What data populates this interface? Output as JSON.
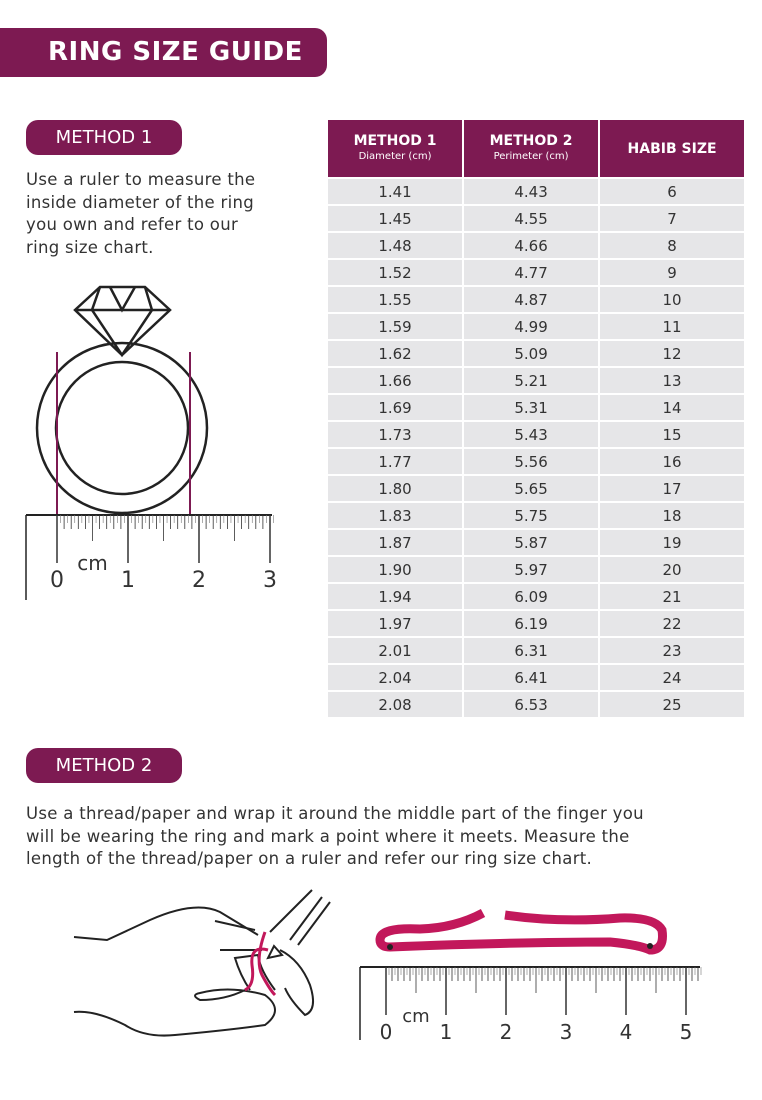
{
  "title": "RING SIZE GUIDE",
  "method1": {
    "label": "METHOD 1",
    "text": [
      "Use a ruler to measure the",
      "inside diameter of the ring",
      "you own and refer to our",
      "ring size chart."
    ]
  },
  "method2": {
    "label": "METHOD 2",
    "text": [
      "Use a thread/paper and wrap it around the middle part of the finger you",
      "will be wearing the ring and mark a point where it meets. Measure the",
      "length of the thread/paper on a ruler and refer our ring size chart."
    ]
  },
  "table": {
    "headers": [
      {
        "title": "METHOD 1",
        "sub": "Diameter (cm)"
      },
      {
        "title": "METHOD 2",
        "sub": "Perimeter (cm)"
      },
      {
        "title": "HABIB SIZE",
        "sub": ""
      }
    ],
    "rows": [
      [
        "1.41",
        "4.43",
        "6"
      ],
      [
        "1.45",
        "4.55",
        "7"
      ],
      [
        "1.48",
        "4.66",
        "8"
      ],
      [
        "1.52",
        "4.77",
        "9"
      ],
      [
        "1.55",
        "4.87",
        "10"
      ],
      [
        "1.59",
        "4.99",
        "11"
      ],
      [
        "1.62",
        "5.09",
        "12"
      ],
      [
        "1.66",
        "5.21",
        "13"
      ],
      [
        "1.69",
        "5.31",
        "14"
      ],
      [
        "1.73",
        "5.43",
        "15"
      ],
      [
        "1.77",
        "5.56",
        "16"
      ],
      [
        "1.80",
        "5.65",
        "17"
      ],
      [
        "1.83",
        "5.75",
        "18"
      ],
      [
        "1.87",
        "5.87",
        "19"
      ],
      [
        "1.90",
        "5.97",
        "20"
      ],
      [
        "1.94",
        "6.09",
        "21"
      ],
      [
        "1.97",
        "6.19",
        "22"
      ],
      [
        "2.01",
        "6.31",
        "23"
      ],
      [
        "2.04",
        "6.41",
        "24"
      ],
      [
        "2.08",
        "6.53",
        "25"
      ]
    ]
  },
  "ruler1": {
    "unit": "cm",
    "labels": [
      "0",
      "1",
      "2",
      "3"
    ]
  },
  "ruler2": {
    "unit": "cm",
    "labels": [
      "0",
      "1",
      "2",
      "3",
      "4",
      "5"
    ]
  },
  "colors": {
    "brand": "#7d1a52",
    "thread": "#c2185b",
    "row": "#e6e6e8"
  }
}
